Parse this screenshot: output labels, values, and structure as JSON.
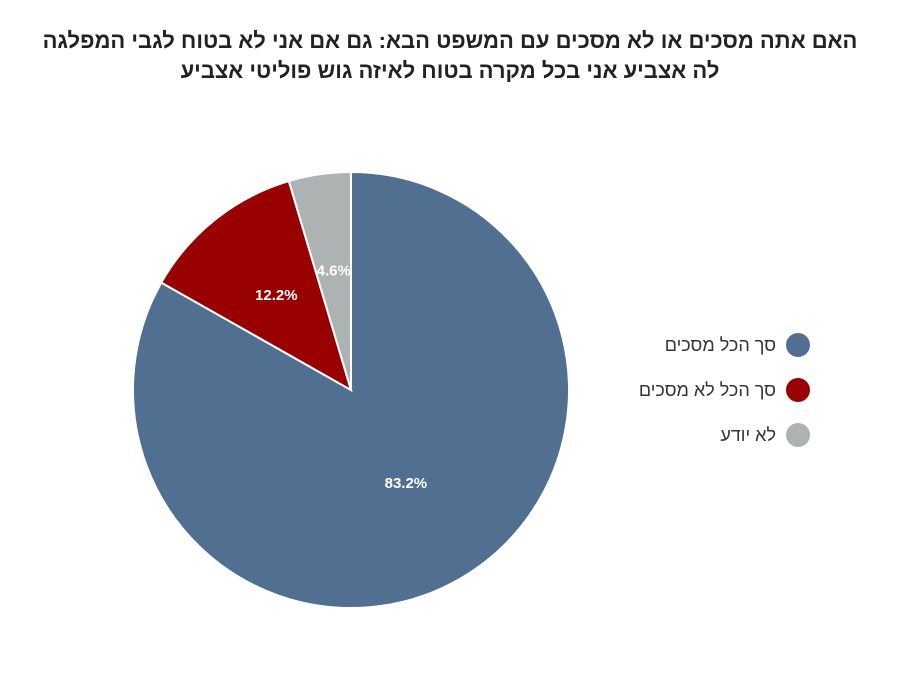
{
  "chart_data": {
    "type": "pie",
    "title_lines": [
      "האם אתה מסכים או לא מסכים עם המשפט הבא: גם אם אני לא בטוח לגבי המפלגה",
      "לה אצביע אני בכל מקרה בטוח לאיזה גוש פוליטי אצביע"
    ],
    "slices": [
      {
        "label": "סך הכל מסכים",
        "value": 83.2,
        "value_label": "83.2%",
        "color": "#516f91"
      },
      {
        "label": "סך הכל לא מסכים",
        "value": 12.2,
        "value_label": "12.2%",
        "color": "#990000"
      },
      {
        "label": "לא יודע",
        "value": 4.6,
        "value_label": "4.6%",
        "color": "#adb2b2"
      }
    ],
    "legend_position": "right"
  }
}
